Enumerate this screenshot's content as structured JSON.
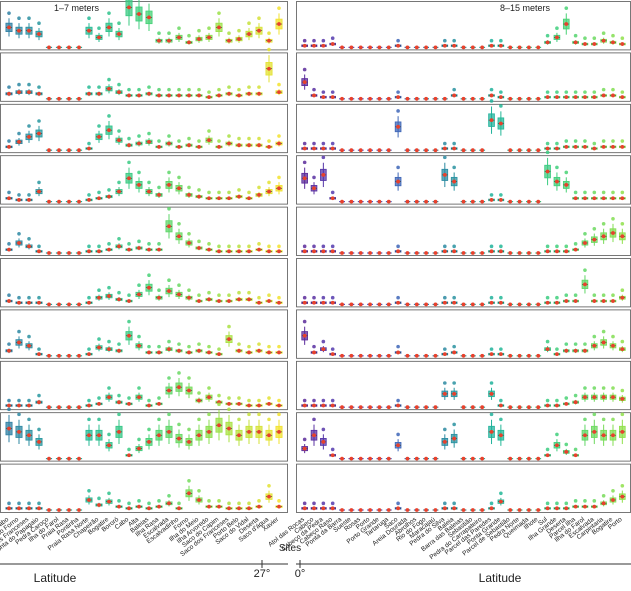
{
  "chart_data": {
    "type": "box",
    "panels_per_group": 10,
    "groups": [
      {
        "subtitle": "1–7 meters",
        "x_axis_label": "Latitude",
        "x_tick_label": "27°",
        "color_scale": [
          "#2e7fa3",
          "#1fb59a",
          "#3fd07a",
          "#8fe04a",
          "#f2e22c"
        ],
        "sites": [
          "Arraial do Cabo",
          "Praia do Forno",
          "Ilha dos Franceses",
          "Ponta do Papagaio",
          "Pedra Caroço",
          "Ilha do Farol",
          "Praia Rasa",
          "Pontinha",
          "Praia Rasa Norte",
          "Chapeirão",
          "Bogatire",
          "Bororó",
          "Cabo",
          "Alta",
          "Baleias",
          "Ilha Rasa",
          "Escalvada",
          "Escalvadinho",
          "Forno",
          "Ilha do Meio",
          "Ilha Arvoredo",
          "Saco do Capim",
          "Saco dos Franceses",
          "Porto Belo",
          "Saco do Vidal",
          "Deserta",
          "Saco d'água",
          "Xavier"
        ],
        "mean_by_panel": [
          [
            1.2,
            1.0,
            1.0,
            0.8,
            0,
            0,
            0,
            0,
            1.0,
            0.6,
            1.2,
            0.8,
            2.4,
            2.0,
            1.8,
            0.4,
            0.4,
            0.6,
            0.3,
            0.5,
            0.6,
            1.2,
            0.4,
            0.5,
            0.8,
            1.0,
            0.4,
            1.4
          ],
          [
            0.3,
            0.4,
            0.4,
            0.3,
            0,
            0,
            0,
            0,
            0.3,
            0.3,
            0.6,
            0.4,
            0.2,
            0.2,
            0.3,
            0.2,
            0.2,
            0.2,
            0.2,
            0.2,
            0.1,
            0.2,
            0.3,
            0.2,
            0.3,
            0.3,
            1.8,
            0.4
          ],
          [
            0.2,
            0.5,
            0.8,
            1.0,
            0,
            0,
            0,
            0,
            0.1,
            0.8,
            1.2,
            0.6,
            0.3,
            0.4,
            0.5,
            0.2,
            0.4,
            0.2,
            0.3,
            0.2,
            0.6,
            0.2,
            0.4,
            0.3,
            0.3,
            0.3,
            0.2,
            0.4
          ],
          [
            0.2,
            0.1,
            0.1,
            0.6,
            0,
            0,
            0,
            0,
            0.1,
            0.2,
            0.3,
            0.6,
            1.4,
            1.0,
            0.6,
            0.4,
            1.0,
            0.8,
            0.4,
            0.3,
            0.2,
            0.2,
            0.2,
            0.3,
            0.2,
            0.4,
            0.6,
            0.8
          ],
          [
            0.2,
            0.6,
            0.4,
            0.1,
            0,
            0,
            0,
            0,
            0.1,
            0.1,
            0.2,
            0.4,
            0.2,
            0.3,
            0.2,
            0.2,
            1.6,
            1.0,
            0.6,
            0.3,
            0.2,
            0.1,
            0.1,
            0.1,
            0.1,
            0.2,
            0.1,
            0.1
          ],
          [
            0.2,
            0.1,
            0.1,
            0.1,
            0,
            0,
            0,
            0,
            0.1,
            0.4,
            0.5,
            0.3,
            0.2,
            0.6,
            1.0,
            0.4,
            0.8,
            0.6,
            0.4,
            0.2,
            0.3,
            0.2,
            0.2,
            0.3,
            0.3,
            0.1,
            0.2,
            0.1
          ],
          [
            0.3,
            0.8,
            0.6,
            0.1,
            0,
            0,
            0,
            0,
            0.1,
            0.5,
            0.4,
            0.3,
            1.2,
            0.6,
            0.2,
            0.2,
            0.4,
            0.3,
            0.2,
            0.3,
            0.2,
            0.1,
            1.0,
            0.3,
            0.2,
            0.3,
            0.2,
            0.2
          ],
          [
            0.1,
            0.1,
            0.1,
            0.3,
            0,
            0,
            0,
            0,
            0.1,
            0.2,
            0.6,
            0.3,
            0.2,
            0.6,
            0.1,
            0.2,
            1.0,
            1.2,
            1.0,
            0.4,
            0.6,
            0.3,
            0.2,
            0.2,
            0.1,
            0.1,
            0.2,
            0.1
          ],
          [
            1.8,
            1.6,
            1.4,
            1.0,
            0,
            0,
            0,
            0,
            1.4,
            1.4,
            0.8,
            1.6,
            0.2,
            0.6,
            1.0,
            1.4,
            1.6,
            1.2,
            1.0,
            1.4,
            1.6,
            2.0,
            1.8,
            1.4,
            1.6,
            1.6,
            1.4,
            1.6
          ],
          [
            0.1,
            0.1,
            0.1,
            0.1,
            0,
            0,
            0,
            0,
            0.6,
            0.3,
            0.5,
            0.2,
            0.1,
            0.2,
            0.1,
            0.2,
            0.4,
            0.1,
            1.0,
            0.6,
            0.2,
            0.2,
            0.1,
            0.1,
            0.1,
            0.2,
            0.8,
            0.2
          ]
        ]
      },
      {
        "subtitle": "8–15 meters",
        "x_axis_label": "Latitude",
        "x_tick_label": "0°",
        "color_scale": [
          "#5a2a9a",
          "#4a4ec8",
          "#2e7fa3",
          "#1fb59a",
          "#3fd07a",
          "#8fe04a"
        ],
        "sites": [
          "Atol das Rocas",
          "Cabeço",
          "Cabeço da Pedra",
          "Cabeço Raso",
          "Ponta da Barra",
          "Sueste",
          "Rosas",
          "Porto",
          "Porto Grande",
          "Tartaruga",
          "Saco",
          "Areia Dourada",
          "Abrolhos",
          "Rio do Fogo",
          "Maracajaú",
          "Pedra do Silva",
          "Baleia",
          "Barra das Baleias",
          "Sebastião",
          "Pedra do Carrapateiro",
          "Parcel das Paredes",
          "Ponta Grande",
          "Parcel de Sebastião",
          "Pedra Norte",
          "Queimada",
          "Ilhote",
          "Sul",
          "Ilha Grande",
          "Deserta",
          "Parcel Ilha",
          "Ilha do Farol",
          "Escalvada",
          "Carpintaria",
          "Bogatire",
          "Porto"
        ],
        "mean_by_panel": [
          [
            0.1,
            0.1,
            0.1,
            0.2,
            0,
            0,
            0,
            0,
            0,
            0,
            0.1,
            0,
            0,
            0,
            0,
            0.1,
            0.1,
            0,
            0,
            0,
            0.1,
            0.1,
            0,
            0,
            0,
            0,
            0.3,
            0.6,
            1.4,
            0.3,
            0.2,
            0.2,
            0.4,
            0.3,
            0.2
          ],
          [
            1.0,
            0.2,
            0.1,
            0.1,
            0,
            0,
            0,
            0,
            0,
            0,
            0.1,
            0,
            0,
            0,
            0,
            0,
            0.2,
            0,
            0,
            0,
            0.2,
            0.1,
            0,
            0,
            0,
            0,
            0.1,
            0.1,
            0.1,
            0.1,
            0.1,
            0.1,
            0.2,
            0.2,
            0.1
          ],
          [
            0.1,
            0.1,
            0.1,
            0.1,
            0,
            0,
            0,
            0,
            0,
            0,
            1.4,
            0,
            0,
            0,
            0,
            0.1,
            0.1,
            0,
            0,
            0,
            1.8,
            1.6,
            0,
            0,
            0,
            0,
            0.1,
            0.1,
            0.2,
            0.2,
            0.2,
            0.1,
            0.2,
            0.2,
            0.2
          ],
          [
            1.4,
            0.8,
            1.6,
            0.2,
            0,
            0,
            0,
            0,
            0,
            0,
            1.2,
            0,
            0,
            0,
            0,
            1.6,
            1.2,
            0,
            0,
            0,
            0.1,
            0.1,
            0,
            0,
            0,
            0,
            1.8,
            1.2,
            1.0,
            0.2,
            0.2,
            0.2,
            0.2,
            0.2,
            0.2
          ],
          [
            0.1,
            0.1,
            0.1,
            0.1,
            0,
            0,
            0,
            0,
            0,
            0,
            0.1,
            0,
            0,
            0,
            0,
            0.1,
            0.1,
            0,
            0,
            0,
            0.1,
            0.1,
            0,
            0,
            0,
            0,
            0.1,
            0.1,
            0.1,
            0.2,
            0.6,
            0.8,
            1.0,
            1.2,
            1.0
          ],
          [
            0.1,
            0.1,
            0.1,
            0.1,
            0,
            0,
            0,
            0,
            0,
            0,
            0.1,
            0,
            0,
            0,
            0,
            0.1,
            0.1,
            0,
            0,
            0,
            0.1,
            0.1,
            0,
            0,
            0,
            0,
            0.1,
            0.1,
            0.2,
            0.2,
            1.2,
            0.2,
            0.2,
            0.2,
            0.4
          ],
          [
            1.2,
            0.2,
            0.4,
            0.1,
            0,
            0,
            0,
            0,
            0,
            0,
            0.2,
            0,
            0,
            0,
            0,
            0.1,
            0.2,
            0,
            0,
            0,
            0.1,
            0.1,
            0,
            0,
            0,
            0,
            0.4,
            0.1,
            0.3,
            0.3,
            0.3,
            0.6,
            0.8,
            0.6,
            0.4
          ],
          [
            0.1,
            0.1,
            0.1,
            0.1,
            0,
            0,
            0,
            0,
            0,
            0,
            0.1,
            0,
            0,
            0,
            0,
            0.8,
            0.8,
            0,
            0,
            0,
            0.8,
            0.1,
            0,
            0,
            0,
            0,
            0.1,
            0.1,
            0.2,
            0.3,
            0.6,
            0.6,
            0.6,
            0.6,
            0.5
          ],
          [
            0.6,
            1.4,
            1.0,
            0.2,
            0,
            0,
            0,
            0,
            0,
            0,
            0.8,
            0,
            0,
            0,
            0,
            1.0,
            1.2,
            0,
            0,
            0,
            1.6,
            1.4,
            0,
            0,
            0,
            0,
            0.2,
            0.8,
            0.4,
            0.2,
            1.4,
            1.6,
            1.4,
            1.4,
            1.6
          ],
          [
            0.1,
            0.1,
            0.1,
            0.1,
            0,
            0,
            0,
            0,
            0,
            0,
            0.1,
            0,
            0,
            0,
            0,
            0.1,
            0.1,
            0,
            0,
            0,
            0.1,
            0.5,
            0,
            0,
            0,
            0,
            0.1,
            0.1,
            0.1,
            0.2,
            0.2,
            0.2,
            0.4,
            0.6,
            0.8
          ]
        ]
      }
    ],
    "xlabel": "Sites",
    "ylabel": "",
    "legend": "none",
    "grid": false
  }
}
